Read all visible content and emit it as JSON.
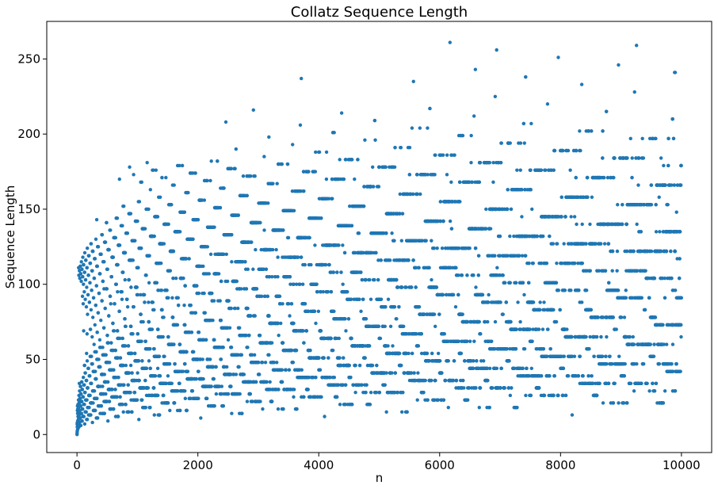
{
  "chart_data": {
    "type": "scatter",
    "title": "Collatz Sequence Length",
    "xlabel": "n",
    "ylabel": "Sequence Length",
    "xlim": [
      -500,
      10500
    ],
    "ylim": [
      -12,
      275
    ],
    "xticks": [
      0,
      2000,
      4000,
      6000,
      8000,
      10000
    ],
    "yticks": [
      0,
      50,
      100,
      150,
      200,
      250
    ],
    "xtick_labels": [
      "0",
      "2000",
      "4000",
      "6000",
      "8000",
      "10000"
    ],
    "ytick_labels": [
      "0",
      "50",
      "100",
      "150",
      "200",
      "250"
    ],
    "color": "#1f77b4",
    "series": [
      {
        "generator": "collatz_total_steps",
        "n_start": 1,
        "n_end": 9999,
        "points_sample": [
          [
            1,
            0
          ],
          [
            2,
            1
          ],
          [
            3,
            7
          ],
          [
            6,
            8
          ],
          [
            7,
            16
          ],
          [
            9,
            19
          ],
          [
            27,
            111
          ],
          [
            97,
            118
          ],
          [
            871,
            178
          ],
          [
            6171,
            261
          ],
          [
            9257,
            259
          ],
          [
            6943,
            256
          ],
          [
            7963,
            251
          ],
          [
            8959,
            246
          ]
        ]
      }
    ],
    "grid": false,
    "legend": "none"
  }
}
